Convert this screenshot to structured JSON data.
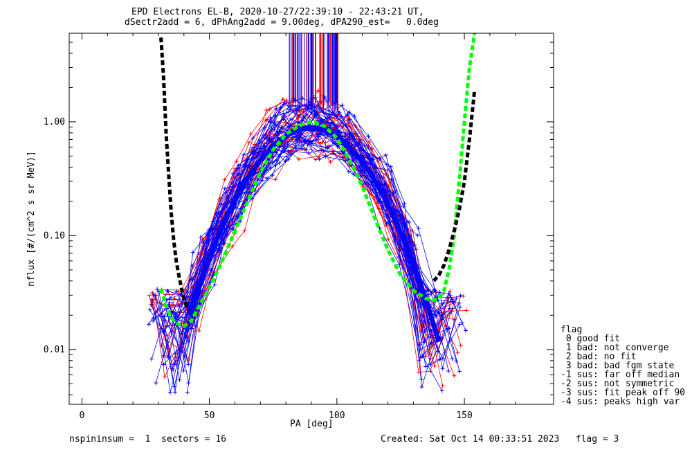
{
  "chart_data": {
    "type": "line",
    "title_line1": "EPD Electrons EL-B, 2020-10-27/22:39:10 - 22:43:21 UT,",
    "title_line2": "dSectr2add = 6, dPhAng2add = 9.00deg, dPA290_est=   0.0deg",
    "xlabel": "PA [deg]",
    "ylabel": "nflux [#/(cm^2 s sr MeV)]",
    "xlim": [
      -5,
      185
    ],
    "ylim": [
      0.0033,
      6.0
    ],
    "yscale": "log",
    "x_ticks": [
      0,
      50,
      100,
      150
    ],
    "x_tick_labels": [
      "0",
      "50",
      "100",
      "150"
    ],
    "y_ticks": [
      0.01,
      0.1,
      1.0
    ],
    "y_tick_labels": [
      "0.01",
      "0.10",
      "1.00"
    ],
    "grid": false,
    "colors": {
      "blue": "#0000ff",
      "red": "#ff0000",
      "green": "#00ff00",
      "black": "#000000"
    },
    "series": [
      {
        "color": "black",
        "style": "dashed",
        "x": [
          31,
          32,
          33,
          34,
          35,
          36,
          37,
          38,
          39,
          40,
          41,
          42
        ],
        "y": [
          5.5,
          2.5,
          0.8,
          0.35,
          0.16,
          0.09,
          0.06,
          0.045,
          0.035,
          0.028,
          0.024,
          0.022
        ]
      },
      {
        "color": "green",
        "style": "dashed",
        "x": [
          31,
          33,
          35,
          37,
          40,
          43,
          46,
          50,
          55,
          60,
          65,
          70,
          75,
          80,
          85,
          88,
          90,
          92,
          95,
          100,
          105,
          110,
          115,
          120,
          125,
          130,
          135,
          138,
          140,
          142,
          144,
          146,
          148,
          150,
          152,
          154
        ],
        "y": [
          0.034,
          0.024,
          0.019,
          0.017,
          0.016,
          0.018,
          0.024,
          0.035,
          0.06,
          0.11,
          0.2,
          0.36,
          0.57,
          0.78,
          0.92,
          0.98,
          1.0,
          0.98,
          0.92,
          0.72,
          0.46,
          0.27,
          0.14,
          0.075,
          0.045,
          0.033,
          0.028,
          0.027,
          0.028,
          0.033,
          0.05,
          0.1,
          0.3,
          1.0,
          3.0,
          6.0
        ]
      },
      {
        "color": "black",
        "style": "dashed",
        "x": [
          138,
          140,
          142,
          144,
          146,
          148,
          150,
          152,
          154
        ],
        "y": [
          0.04,
          0.045,
          0.055,
          0.075,
          0.11,
          0.17,
          0.3,
          0.7,
          1.9
        ]
      }
    ],
    "legend": {
      "title": "flag",
      "entries": [
        " 0 good fit",
        " 1 bad: not converge",
        " 2 bad: no fit",
        " 3 bad: bad fgm state",
        "-1 sus: far off median",
        "-2 sus: not symmetric",
        "-3 sus: fit peak off 90",
        "-4 sus: peaks high var"
      ],
      "placement": "right, outside plot"
    },
    "footer_left": "nspininsum =  1  sectors = 16",
    "footer_right": "Created: Sat Oct 14 00:33:51 2023   flag = 3"
  }
}
